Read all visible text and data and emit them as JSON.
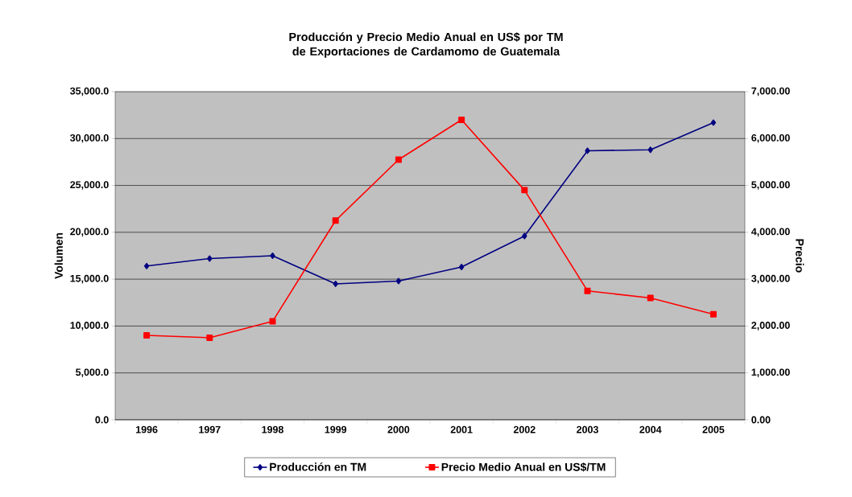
{
  "chart_data": {
    "type": "line",
    "title": "Producción y Precio Medio Anual en US$ por TM de Exportaciones de Cardamomo de Guatemala",
    "categories": [
      "1996",
      "1997",
      "1998",
      "1999",
      "2000",
      "2001",
      "2002",
      "2003",
      "2004",
      "2005"
    ],
    "series": [
      {
        "name": "Producción en TM",
        "color": "#000080",
        "marker": "diamond",
        "values": [
          16400,
          17200,
          17500,
          14500,
          14800,
          16300,
          19600,
          28700,
          28800,
          31700
        ]
      },
      {
        "name": "Precio Medio Anual en US$/TM",
        "color": "#ff0000",
        "marker": "square",
        "axis": "y2",
        "values": [
          1800,
          1750,
          2100,
          4250,
          5550,
          6400,
          4900,
          2750,
          2600,
          2250
        ]
      }
    ],
    "ylabel": "Volumen",
    "y2label": "Precio",
    "ylim": [
      0,
      35000
    ],
    "yticks": [
      {
        "value": 0,
        "label": "0.0"
      },
      {
        "value": 5000,
        "label": "5,000.0"
      },
      {
        "value": 10000,
        "label": "10,000.0"
      },
      {
        "value": 15000,
        "label": "15,000.0"
      },
      {
        "value": 20000,
        "label": "20,000.0"
      },
      {
        "value": 25000,
        "label": "25,000.0"
      },
      {
        "value": 30000,
        "label": "30,000.0"
      },
      {
        "value": 35000,
        "label": "35,000.0"
      }
    ],
    "y2lim": [
      0,
      7000
    ],
    "y2ticks": [
      {
        "value": 0,
        "label": "0.00"
      },
      {
        "value": 1000,
        "label": "1,000.00"
      },
      {
        "value": 2000,
        "label": "2,000.00"
      },
      {
        "value": 3000,
        "label": "3,000.00"
      },
      {
        "value": 4000,
        "label": "4,000.00"
      },
      {
        "value": 5000,
        "label": "5,000.00"
      },
      {
        "value": 6000,
        "label": "6,000.00"
      },
      {
        "value": 7000,
        "label": "7,000.00"
      }
    ],
    "grid": "y",
    "legend": "bottom",
    "line_style": "solid"
  }
}
